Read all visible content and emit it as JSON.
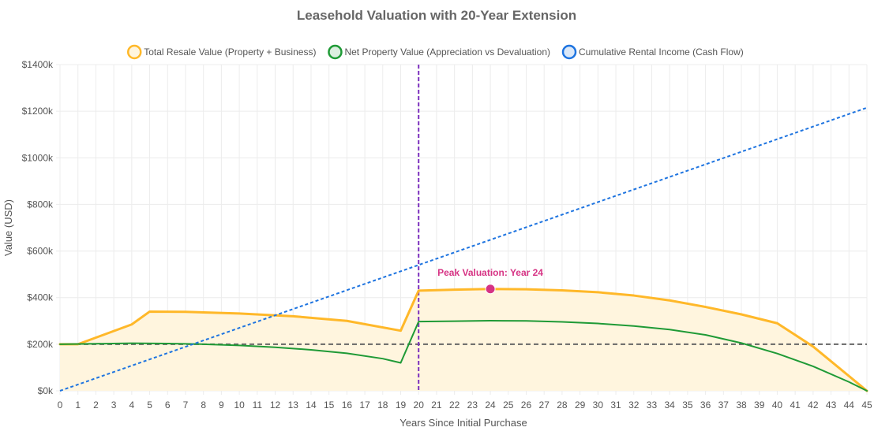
{
  "chart_data": {
    "type": "line",
    "title": "Leasehold Valuation with 20-Year Extension",
    "xlabel": "Years Since Initial Purchase",
    "ylabel": "Value (USD)",
    "xlim": [
      0,
      45
    ],
    "ylim": [
      0,
      1400000
    ],
    "y_ticks": [
      0,
      200000,
      400000,
      600000,
      800000,
      1000000,
      1200000,
      1400000
    ],
    "y_tick_labels": [
      "$0k",
      "$200k",
      "$400k",
      "$600k",
      "$800k",
      "$1000k",
      "$1200k",
      "$1400k"
    ],
    "x_ticks": [
      0,
      1,
      2,
      3,
      4,
      5,
      6,
      7,
      8,
      9,
      10,
      11,
      12,
      13,
      14,
      15,
      16,
      17,
      18,
      19,
      20,
      21,
      22,
      23,
      24,
      25,
      26,
      27,
      28,
      29,
      30,
      31,
      32,
      33,
      34,
      35,
      36,
      37,
      38,
      39,
      40,
      41,
      42,
      43,
      44,
      45
    ],
    "legend_position": "top-center",
    "grid": true,
    "series": [
      {
        "name": "Total Resale Value (Property + Business)",
        "color": "#FFB829",
        "style": "solid",
        "fill": true,
        "fill_color": "#FFF5DE",
        "x": [
          0,
          1,
          4,
          5,
          7,
          10,
          13,
          16,
          19,
          20,
          22,
          24,
          26,
          28,
          30,
          32,
          34,
          36,
          38,
          40,
          42,
          45
        ],
        "values": [
          200000,
          200000,
          285000,
          340000,
          339000,
          332000,
          320000,
          300000,
          258000,
          430000,
          434000,
          437000,
          436000,
          431000,
          423000,
          409000,
          388000,
          360000,
          328000,
          290000,
          190000,
          0
        ]
      },
      {
        "name": "Net Property Value (Appreciation vs Devaluation)",
        "color": "#1F9A36",
        "style": "solid",
        "fill": false,
        "x": [
          0,
          2,
          4,
          6,
          8,
          10,
          12,
          14,
          16,
          18,
          19,
          20,
          22,
          24,
          26,
          28,
          30,
          32,
          34,
          36,
          38,
          40,
          42,
          44,
          45
        ],
        "values": [
          200000,
          202000,
          204000,
          203000,
          200000,
          195000,
          187000,
          176000,
          161000,
          138000,
          120000,
          297000,
          299000,
          301000,
          300000,
          296000,
          289000,
          278000,
          263000,
          240000,
          205000,
          160000,
          105000,
          38000,
          0
        ]
      },
      {
        "name": "Cumulative Rental Income (Cash Flow)",
        "color": "#1E74E0",
        "style": "dotted",
        "fill": false,
        "x": [
          0,
          45
        ],
        "values": [
          0,
          1215000
        ]
      }
    ],
    "reference_lines": [
      {
        "orientation": "horizontal",
        "value": 200000,
        "color": "#666666",
        "style": "dashed"
      },
      {
        "orientation": "vertical",
        "value": 20,
        "color": "#7B2FBE",
        "style": "dashed"
      }
    ],
    "annotations": [
      {
        "text": "Peak Valuation: Year 24",
        "x": 24,
        "y": 437000,
        "color": "#d63384"
      }
    ]
  }
}
